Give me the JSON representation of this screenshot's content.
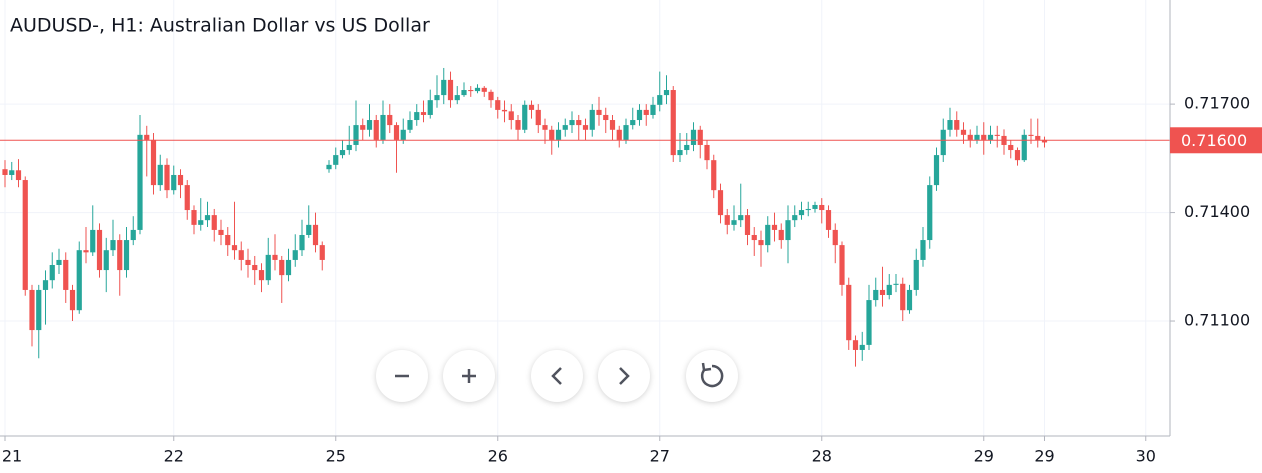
{
  "chart_data": {
    "type": "candlestick",
    "title": "AUDUSD-, H1: Australian Dollar vs US Dollar",
    "categories": [
      "21",
      null,
      null,
      null,
      null,
      null,
      null,
      null,
      null,
      null,
      null,
      null,
      null,
      null,
      null,
      null,
      null,
      null,
      null,
      null,
      null,
      null,
      null,
      null,
      null,
      "22",
      null,
      null,
      null,
      null,
      null,
      null,
      null,
      null,
      null,
      null,
      null,
      null,
      null,
      null,
      null,
      null,
      null,
      null,
      null,
      null,
      null,
      null,
      null,
      "25",
      null,
      null,
      null,
      null,
      null,
      null,
      null,
      null,
      null,
      null,
      null,
      null,
      null,
      null,
      null,
      null,
      null,
      null,
      null,
      null,
      null,
      null,
      null,
      "26",
      null,
      null,
      null,
      null,
      null,
      null,
      null,
      null,
      null,
      null,
      null,
      null,
      null,
      null,
      null,
      null,
      null,
      null,
      null,
      null,
      null,
      null,
      null,
      "27",
      null,
      null,
      null,
      null,
      null,
      null,
      null,
      null,
      null,
      null,
      null,
      null,
      null,
      null,
      null,
      null,
      null,
      null,
      null,
      null,
      null,
      null,
      null,
      "28",
      null,
      null,
      null,
      null,
      null,
      null,
      null,
      null,
      null,
      null,
      null,
      null,
      null,
      null,
      null,
      null,
      null,
      null,
      null,
      null,
      null,
      null,
      null,
      "29",
      null,
      null,
      null,
      null,
      null,
      null,
      null,
      null,
      "29",
      null,
      null,
      null,
      null,
      null,
      null,
      null,
      null,
      null,
      null,
      null,
      null,
      null,
      null,
      "30",
      null,
      null
    ],
    "open": [
      0.7152,
      0.71504,
      0.71517,
      0.7149,
      0.71186,
      0.71075,
      0.71186,
      0.71213,
      0.71255,
      0.71269,
      0.71186,
      0.7113,
      0.71296,
      0.7129,
      0.71352,
      0.71241,
      0.71296,
      0.71324,
      0.71241,
      0.71324,
      0.71352,
      0.71615,
      0.71601,
      0.71476,
      0.71532,
      0.71462,
      0.71504,
      0.71476,
      0.71407,
      0.71366,
      0.71379,
      0.71393,
      0.71352,
      0.71338,
      0.7131,
      0.71296,
      0.71269,
      0.71255,
      0.71241,
      0.71213,
      0.71283,
      0.71269,
      0.71227,
      0.71269,
      0.71296,
      0.71338,
      0.71366,
      0.7131,
      0.7152,
      0.71532,
      0.71559,
      0.71573,
      0.71587,
      0.71642,
      0.71629,
      0.71656,
      0.71601,
      0.7167,
      0.71642,
      0.71601,
      0.71629,
      0.71656,
      0.71678,
      0.7167,
      0.71711,
      0.71725,
      0.71767,
      0.71711,
      0.71725,
      0.71739,
      0.71736,
      0.71745,
      0.71734,
      0.71711,
      0.71684,
      0.7168,
      0.71656,
      0.71629,
      0.71698,
      0.71684,
      0.71642,
      0.71629,
      0.71601,
      0.71629,
      0.71642,
      0.71656,
      0.71642,
      0.71629,
      0.71684,
      0.7167,
      0.71656,
      0.71629,
      0.71601,
      0.71642,
      0.71656,
      0.71684,
      0.7167,
      0.71698,
      0.71725,
      0.71739,
      0.71559,
      0.71573,
      0.71587,
      0.71629,
      0.71587,
      0.71545,
      0.71462,
      0.71393,
      0.71366,
      0.71379,
      0.71393,
      0.71338,
      0.71324,
      0.7131,
      0.71366,
      0.71352,
      0.71324,
      0.71379,
      0.71393,
      0.71407,
      0.7141,
      0.71421,
      0.71407,
      0.71352,
      0.7131,
      0.712,
      0.71047,
      0.7102,
      0.71034,
      0.71158,
      0.71186,
      0.71172,
      0.712,
      0.71203,
      0.7113,
      0.71186,
      0.71269,
      0.71324,
      0.71476,
      0.71559,
      0.71629,
      0.71656,
      0.71629,
      0.71615,
      0.71601,
      0.71615,
      0.71601,
      0.71615,
      0.71612,
      0.71587,
      0.71573,
      0.71545,
      0.71615,
      0.71612,
      0.71601,
      null,
      null,
      null,
      null,
      null,
      null,
      null,
      null,
      null,
      null,
      null,
      null,
      null,
      null,
      null,
      null,
      null
    ],
    "high": [
      0.71545,
      0.7154,
      0.71548,
      0.715,
      0.712,
      0.712,
      0.7124,
      0.7129,
      0.713,
      0.7129,
      0.712,
      0.7132,
      0.7136,
      0.7142,
      0.7137,
      0.7133,
      0.7138,
      0.7134,
      0.7136,
      0.7139,
      0.7167,
      0.7164,
      0.7162,
      0.7156,
      0.7155,
      0.7153,
      0.7152,
      0.7149,
      0.7142,
      0.7144,
      0.7143,
      0.7141,
      0.7138,
      0.7136,
      0.7143,
      0.7132,
      0.713,
      0.7128,
      0.7126,
      0.7133,
      0.7134,
      0.7128,
      0.713,
      0.7134,
      0.7138,
      0.7142,
      0.714,
      0.7132,
      0.71545,
      0.7158,
      0.716,
      0.7164,
      0.7171,
      0.7166,
      0.717,
      0.7167,
      0.7171,
      0.717,
      0.7165,
      0.7166,
      0.7168,
      0.717,
      0.7171,
      0.7174,
      0.7178,
      0.718,
      0.7179,
      0.7175,
      0.7176,
      0.7175,
      0.71755,
      0.7175,
      0.7174,
      0.7172,
      0.7171,
      0.717,
      0.7167,
      0.7171,
      0.7171,
      0.717,
      0.7166,
      0.7164,
      0.7165,
      0.7166,
      0.7168,
      0.7167,
      0.7166,
      0.717,
      0.7172,
      0.7169,
      0.7167,
      0.7164,
      0.7166,
      0.7169,
      0.717,
      0.717,
      0.7172,
      0.7179,
      0.7178,
      0.7175,
      0.7162,
      0.7162,
      0.7165,
      0.7164,
      0.716,
      0.7156,
      0.7148,
      0.7141,
      0.7142,
      0.7148,
      0.7141,
      0.7136,
      0.7135,
      0.7139,
      0.714,
      0.7137,
      0.7142,
      0.7142,
      0.7143,
      0.7143,
      0.7143,
      0.7144,
      0.7142,
      0.7137,
      0.7132,
      0.7122,
      0.7106,
      0.7107,
      0.712,
      0.7122,
      0.7125,
      0.7123,
      0.7123,
      0.7122,
      0.712,
      0.713,
      0.7136,
      0.715,
      0.7158,
      0.7166,
      0.7169,
      0.7168,
      0.7165,
      0.7163,
      0.7164,
      0.7165,
      0.7164,
      0.7164,
      0.7163,
      0.716,
      0.7158,
      0.7163,
      0.7166,
      0.7166,
      0.7161,
      null,
      null,
      null,
      null,
      null,
      null,
      null,
      null,
      null,
      null,
      null,
      null,
      null,
      null,
      null,
      null,
      null
    ],
    "low": [
      0.7147,
      0.7149,
      0.7147,
      0.7117,
      0.7103,
      0.70997,
      0.7109,
      0.7119,
      0.7123,
      0.7115,
      0.711,
      0.7112,
      0.7126,
      0.7128,
      0.7122,
      0.7118,
      0.7128,
      0.7117,
      0.7122,
      0.7131,
      0.7134,
      0.715,
      0.7145,
      0.7146,
      0.7144,
      0.7145,
      0.7144,
      0.7138,
      0.7134,
      0.7135,
      0.7136,
      0.7132,
      0.7131,
      0.7128,
      0.7127,
      0.7124,
      0.7122,
      0.712,
      0.7118,
      0.712,
      0.7124,
      0.7115,
      0.7121,
      0.7125,
      0.7128,
      0.7133,
      0.7129,
      0.7124,
      0.7151,
      0.7152,
      0.7155,
      0.7156,
      0.7157,
      0.716,
      0.7161,
      0.7158,
      0.7159,
      0.7162,
      0.7151,
      0.7159,
      0.7162,
      0.7164,
      0.7165,
      0.7166,
      0.7169,
      0.717,
      0.7169,
      0.717,
      0.7172,
      0.7172,
      0.7173,
      0.7172,
      0.7169,
      0.7166,
      0.7165,
      0.7163,
      0.716,
      0.7162,
      0.7166,
      0.7162,
      0.7159,
      0.7156,
      0.7158,
      0.7161,
      0.7162,
      0.716,
      0.716,
      0.7161,
      0.7164,
      0.7162,
      0.716,
      0.7158,
      0.7159,
      0.7163,
      0.7164,
      0.7164,
      0.7166,
      0.7168,
      0.717,
      0.7154,
      0.7154,
      0.7156,
      0.7157,
      0.7155,
      0.7152,
      0.7144,
      0.7137,
      0.7134,
      0.7135,
      0.7136,
      0.7131,
      0.7128,
      0.7125,
      0.7129,
      0.7132,
      0.713,
      0.7126,
      0.7136,
      0.7138,
      0.7139,
      0.714,
      0.7137,
      0.7133,
      0.7126,
      0.7117,
      0.7102,
      0.70974,
      0.7099,
      0.7102,
      0.7114,
      0.7114,
      0.7116,
      0.7118,
      0.711,
      0.7112,
      0.7117,
      0.7125,
      0.713,
      0.7146,
      0.7154,
      0.7161,
      0.7161,
      0.7159,
      0.7158,
      0.7159,
      0.7156,
      0.7159,
      0.7158,
      0.7156,
      0.7155,
      0.7153,
      0.7154,
      0.7159,
      0.7158,
      0.7158,
      null,
      null,
      null,
      null,
      null,
      null,
      null,
      null,
      null,
      null,
      null,
      null,
      null,
      null,
      null,
      null,
      null
    ],
    "close": [
      0.71504,
      0.71517,
      0.7149,
      0.71186,
      0.71075,
      0.71186,
      0.71213,
      0.71255,
      0.71269,
      0.71186,
      0.7113,
      0.71296,
      0.7129,
      0.71352,
      0.71241,
      0.71296,
      0.71324,
      0.71241,
      0.71324,
      0.71352,
      0.71615,
      0.71601,
      0.71476,
      0.71532,
      0.71462,
      0.71504,
      0.71476,
      0.71407,
      0.71366,
      0.71379,
      0.71393,
      0.71352,
      0.71338,
      0.7131,
      0.71296,
      0.71269,
      0.71255,
      0.71241,
      0.71213,
      0.71283,
      0.71269,
      0.71227,
      0.71269,
      0.71296,
      0.71338,
      0.71366,
      0.7131,
      0.71269,
      0.71532,
      0.71559,
      0.71573,
      0.71587,
      0.71642,
      0.71629,
      0.71656,
      0.71601,
      0.7167,
      0.71642,
      0.71601,
      0.71629,
      0.71656,
      0.71678,
      0.7167,
      0.71711,
      0.71725,
      0.71767,
      0.71711,
      0.71725,
      0.71739,
      0.71736,
      0.71745,
      0.71734,
      0.71711,
      0.71684,
      0.7168,
      0.71656,
      0.71629,
      0.71698,
      0.71684,
      0.71642,
      0.71629,
      0.71601,
      0.71629,
      0.71642,
      0.71656,
      0.71642,
      0.71629,
      0.71684,
      0.7167,
      0.71656,
      0.71629,
      0.71601,
      0.71642,
      0.71656,
      0.71684,
      0.7167,
      0.71698,
      0.71725,
      0.71739,
      0.71559,
      0.71573,
      0.71587,
      0.71629,
      0.71587,
      0.71545,
      0.71462,
      0.71393,
      0.71366,
      0.71379,
      0.71393,
      0.71338,
      0.71324,
      0.7131,
      0.71366,
      0.71352,
      0.71324,
      0.71379,
      0.71393,
      0.71407,
      0.7141,
      0.71421,
      0.71407,
      0.71352,
      0.7131,
      0.712,
      0.71047,
      0.7102,
      0.71034,
      0.71158,
      0.71186,
      0.71172,
      0.712,
      0.71203,
      0.7113,
      0.71186,
      0.71269,
      0.71324,
      0.71476,
      0.71559,
      0.71629,
      0.71656,
      0.71629,
      0.71615,
      0.71601,
      0.71615,
      0.71601,
      0.71615,
      0.71612,
      0.71587,
      0.71573,
      0.71545,
      0.71615,
      0.71612,
      0.71601,
      0.71594,
      null,
      null,
      null,
      null,
      null,
      null,
      null,
      null,
      null,
      null,
      null,
      null,
      null,
      null,
      null,
      null,
      null
    ],
    "up_color": "#26a69a",
    "down_color": "#ef5350",
    "ylim": [
      0.70782,
      0.71988
    ],
    "yticks": [
      {
        "value": 0.711,
        "label": "0.71100"
      },
      {
        "value": 0.714,
        "label": "0.71400"
      },
      {
        "value": 0.717,
        "label": "0.71700"
      }
    ],
    "grid": true,
    "price_line": {
      "value": 0.716,
      "label": "0.71600",
      "color": "#ef5350"
    }
  }
}
